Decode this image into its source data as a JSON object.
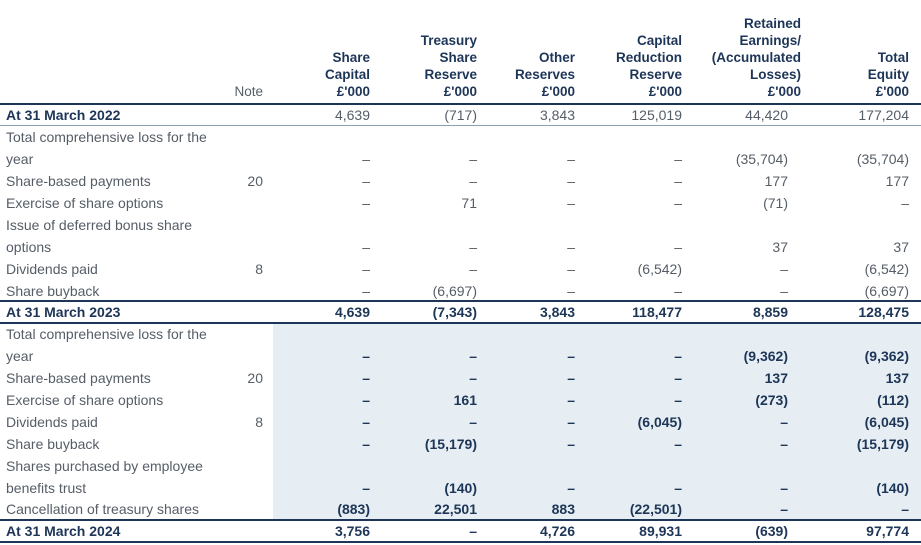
{
  "headers": [
    [
      "Note"
    ],
    [
      "Share",
      "Capital",
      "£'000"
    ],
    [
      "Treasury",
      "Share",
      "Reserve",
      "£'000"
    ],
    [
      "Other",
      "Reserves",
      "£'000"
    ],
    [
      "Capital",
      "Reduction",
      "Reserve",
      "£'000"
    ],
    [
      "Retained",
      "Earnings/",
      "(Accumulated",
      "Losses)",
      "£'000"
    ],
    [
      "Total",
      "Equity",
      "£'000"
    ]
  ],
  "rows": [
    {
      "label": "At 31 March 2022",
      "note": "",
      "v": [
        "4,639",
        "(717)",
        "3,843",
        "125,019",
        "44,420",
        "177,204"
      ]
    },
    {
      "label": "Total comprehensive loss for the year",
      "note": "",
      "v": [
        "–",
        "–",
        "–",
        "–",
        "(35,704)",
        "(35,704)"
      ]
    },
    {
      "label": "Share-based payments",
      "note": "20",
      "v": [
        "–",
        "–",
        "–",
        "–",
        "177",
        "177"
      ]
    },
    {
      "label": "Exercise of share options",
      "note": "",
      "v": [
        "–",
        "71",
        "–",
        "–",
        "(71)",
        "–"
      ]
    },
    {
      "label": "Issue of deferred bonus share options",
      "note": "",
      "v": [
        "–",
        "–",
        "–",
        "–",
        "37",
        "37"
      ]
    },
    {
      "label": "Dividends paid",
      "note": "8",
      "v": [
        "–",
        "–",
        "–",
        "(6,542)",
        "–",
        "(6,542)"
      ]
    },
    {
      "label": "Share buyback",
      "note": "",
      "v": [
        "–",
        "(6,697)",
        "–",
        "–",
        "–",
        "(6,697)"
      ]
    },
    {
      "label": "At 31 March 2023",
      "note": "",
      "v": [
        "4,639",
        "(7,343)",
        "3,843",
        "118,477",
        "8,859",
        "128,475"
      ]
    },
    {
      "label": "Total comprehensive loss for the year",
      "note": "",
      "v": [
        "–",
        "–",
        "–",
        "–",
        "(9,362)",
        "(9,362)"
      ]
    },
    {
      "label": "Share-based payments",
      "note": "20",
      "v": [
        "–",
        "–",
        "–",
        "–",
        "137",
        "137"
      ]
    },
    {
      "label": "Exercise of share options",
      "note": "",
      "v": [
        "–",
        "161",
        "–",
        "–",
        "(273)",
        "(112)"
      ]
    },
    {
      "label": "Dividends paid",
      "note": "8",
      "v": [
        "–",
        "–",
        "–",
        "(6,045)",
        "–",
        "(6,045)"
      ]
    },
    {
      "label": "Share buyback",
      "note": "",
      "v": [
        "–",
        "(15,179)",
        "–",
        "–",
        "–",
        "(15,179)"
      ]
    },
    {
      "label": "Shares purchased by employee benefits trust",
      "note": "",
      "v": [
        "–",
        "(140)",
        "–",
        "–",
        "–",
        "(140)"
      ]
    },
    {
      "label": "Cancellation of treasury shares",
      "note": "",
      "v": [
        "(883)",
        "22,501",
        "883",
        "(22,501)",
        "–",
        "–"
      ]
    },
    {
      "label": "At 31 March 2024",
      "note": "",
      "v": [
        "3,756",
        "–",
        "4,726",
        "89,931",
        "(639)",
        "97,774"
      ]
    }
  ],
  "colors": {
    "heading": "#1d3557",
    "body": "#555d66",
    "shade": "#e6eef3"
  }
}
